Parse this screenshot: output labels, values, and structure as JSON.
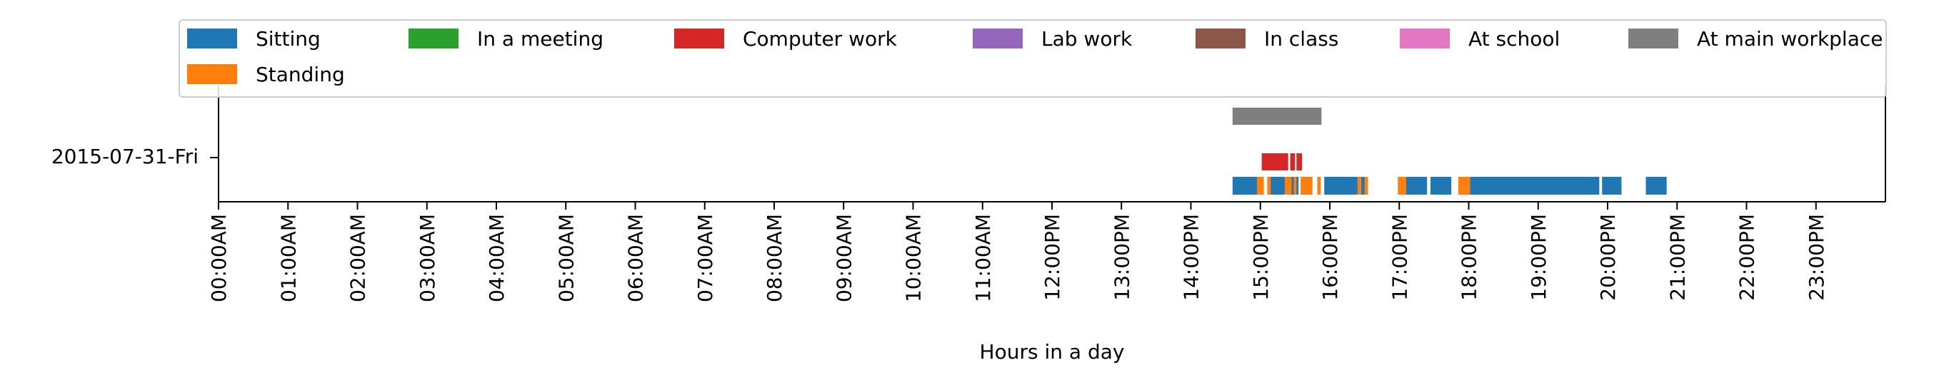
{
  "chart_data": {
    "type": "bar",
    "title": "",
    "xlabel": "Hours in a day",
    "ylabel": "",
    "xlim": [
      0,
      24
    ],
    "row_label": "2015-07-31-Fri",
    "grid": false,
    "legend_placement": "top",
    "x_ticks": [
      {
        "value": 0,
        "label": "00:00AM"
      },
      {
        "value": 1,
        "label": "01:00AM"
      },
      {
        "value": 2,
        "label": "02:00AM"
      },
      {
        "value": 3,
        "label": "03:00AM"
      },
      {
        "value": 4,
        "label": "04:00AM"
      },
      {
        "value": 5,
        "label": "05:00AM"
      },
      {
        "value": 6,
        "label": "06:00AM"
      },
      {
        "value": 7,
        "label": "07:00AM"
      },
      {
        "value": 8,
        "label": "08:00AM"
      },
      {
        "value": 9,
        "label": "09:00AM"
      },
      {
        "value": 10,
        "label": "10:00AM"
      },
      {
        "value": 11,
        "label": "11:00AM"
      },
      {
        "value": 12,
        "label": "12:00PM"
      },
      {
        "value": 13,
        "label": "13:00PM"
      },
      {
        "value": 14,
        "label": "14:00PM"
      },
      {
        "value": 15,
        "label": "15:00PM"
      },
      {
        "value": 16,
        "label": "16:00PM"
      },
      {
        "value": 17,
        "label": "17:00PM"
      },
      {
        "value": 18,
        "label": "18:00PM"
      },
      {
        "value": 19,
        "label": "19:00PM"
      },
      {
        "value": 20,
        "label": "20:00PM"
      },
      {
        "value": 21,
        "label": "21:00PM"
      },
      {
        "value": 22,
        "label": "22:00PM"
      },
      {
        "value": 23,
        "label": "23:00PM"
      }
    ],
    "series": [
      {
        "name": "Sitting",
        "color": "#1f77b4",
        "lane": 0,
        "intervals": [
          [
            14.6,
            14.98
          ],
          [
            15.1,
            15.4
          ],
          [
            15.45,
            15.55
          ],
          [
            15.92,
            16.4
          ],
          [
            16.45,
            16.55
          ],
          [
            17.08,
            17.4
          ],
          [
            17.45,
            17.75
          ],
          [
            18.02,
            19.88
          ],
          [
            19.92,
            20.2
          ],
          [
            20.55,
            20.85
          ]
        ]
      },
      {
        "name": "Standing",
        "color": "#ff7f0e",
        "lane": 0,
        "intervals": [
          [
            14.95,
            15.05
          ],
          [
            15.1,
            15.15
          ],
          [
            15.35,
            15.45
          ],
          [
            15.48,
            15.52
          ],
          [
            15.58,
            15.75
          ],
          [
            15.82,
            15.87
          ],
          [
            16.4,
            16.45
          ],
          [
            16.5,
            16.55
          ],
          [
            16.98,
            17.1
          ],
          [
            17.85,
            18.02
          ]
        ]
      },
      {
        "name": "In a meeting",
        "color": "#2ca02c",
        "lane": 1,
        "intervals": []
      },
      {
        "name": "Computer work",
        "color": "#d62728",
        "lane": 1,
        "intervals": [
          [
            15.02,
            15.4
          ],
          [
            15.43,
            15.5
          ],
          [
            15.52,
            15.6
          ]
        ]
      },
      {
        "name": "Lab work",
        "color": "#9467bd",
        "lane": 1,
        "intervals": []
      },
      {
        "name": "In class",
        "color": "#8c564b",
        "lane": 2,
        "intervals": []
      },
      {
        "name": "At school",
        "color": "#e377c2",
        "lane": 2,
        "intervals": []
      },
      {
        "name": "At main workplace",
        "color": "#7f7f7f",
        "lane": 2,
        "intervals": [
          [
            14.6,
            15.88
          ]
        ]
      }
    ]
  },
  "legend_order": [
    "Sitting",
    "In a meeting",
    "Computer work",
    "Lab work",
    "In class",
    "At school",
    "At main workplace",
    "Standing"
  ]
}
